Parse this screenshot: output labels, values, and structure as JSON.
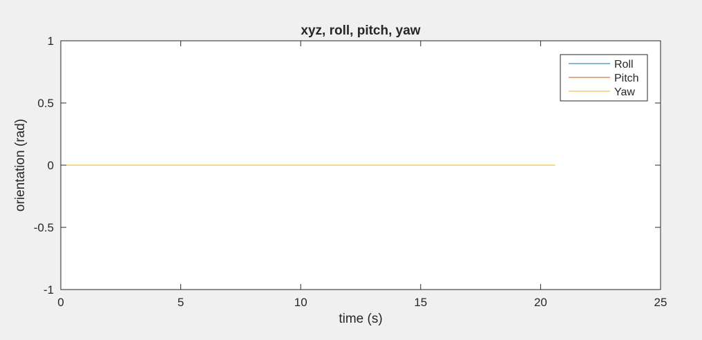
{
  "chart_data": {
    "type": "line",
    "title": "xyz, roll, pitch, yaw",
    "xlabel": "time (s)",
    "ylabel": "orientation (rad)",
    "xlim": [
      0,
      25
    ],
    "ylim": [
      -1,
      1
    ],
    "xticks": [
      0,
      5,
      10,
      15,
      20,
      25
    ],
    "xtick_labels": [
      "0",
      "5",
      "10",
      "15",
      "20",
      "25"
    ],
    "yticks": [
      -1,
      -0.5,
      0,
      0.5,
      1
    ],
    "ytick_labels": [
      "-1",
      "-0.5",
      "0",
      "0.5",
      "1"
    ],
    "grid": false,
    "legend_position": "top-right",
    "x": [
      0,
      20.6
    ],
    "series": [
      {
        "name": "Roll",
        "color": "#0072bd",
        "values": [
          0,
          0
        ]
      },
      {
        "name": "Pitch",
        "color": "#d95319",
        "values": [
          0,
          0
        ]
      },
      {
        "name": "Yaw",
        "color": "#edb120",
        "values": [
          0,
          0
        ]
      }
    ]
  },
  "colors": {
    "background": "#f0f0f0",
    "axes_background": "#ffffff",
    "axes_line": "#262626"
  }
}
